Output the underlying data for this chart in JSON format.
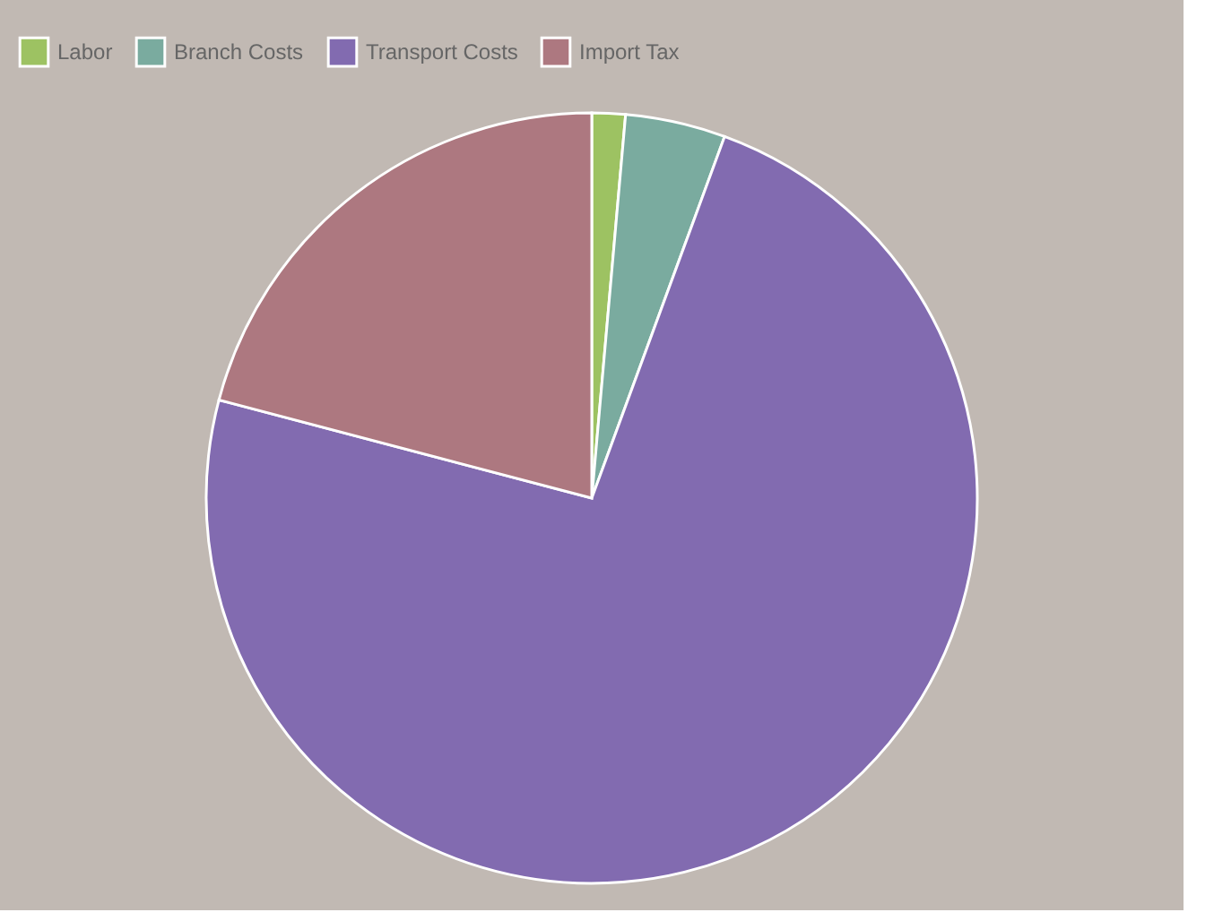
{
  "chart_data": {
    "type": "pie",
    "categories": [
      "Labor",
      "Branch Costs",
      "Transport Costs",
      "Import Tax"
    ],
    "values": [
      1.4,
      4.2,
      73.5,
      20.9
    ],
    "colors": [
      "#9dc262",
      "#7aab9f",
      "#826bb0",
      "#ad7880"
    ],
    "legend": "top"
  }
}
